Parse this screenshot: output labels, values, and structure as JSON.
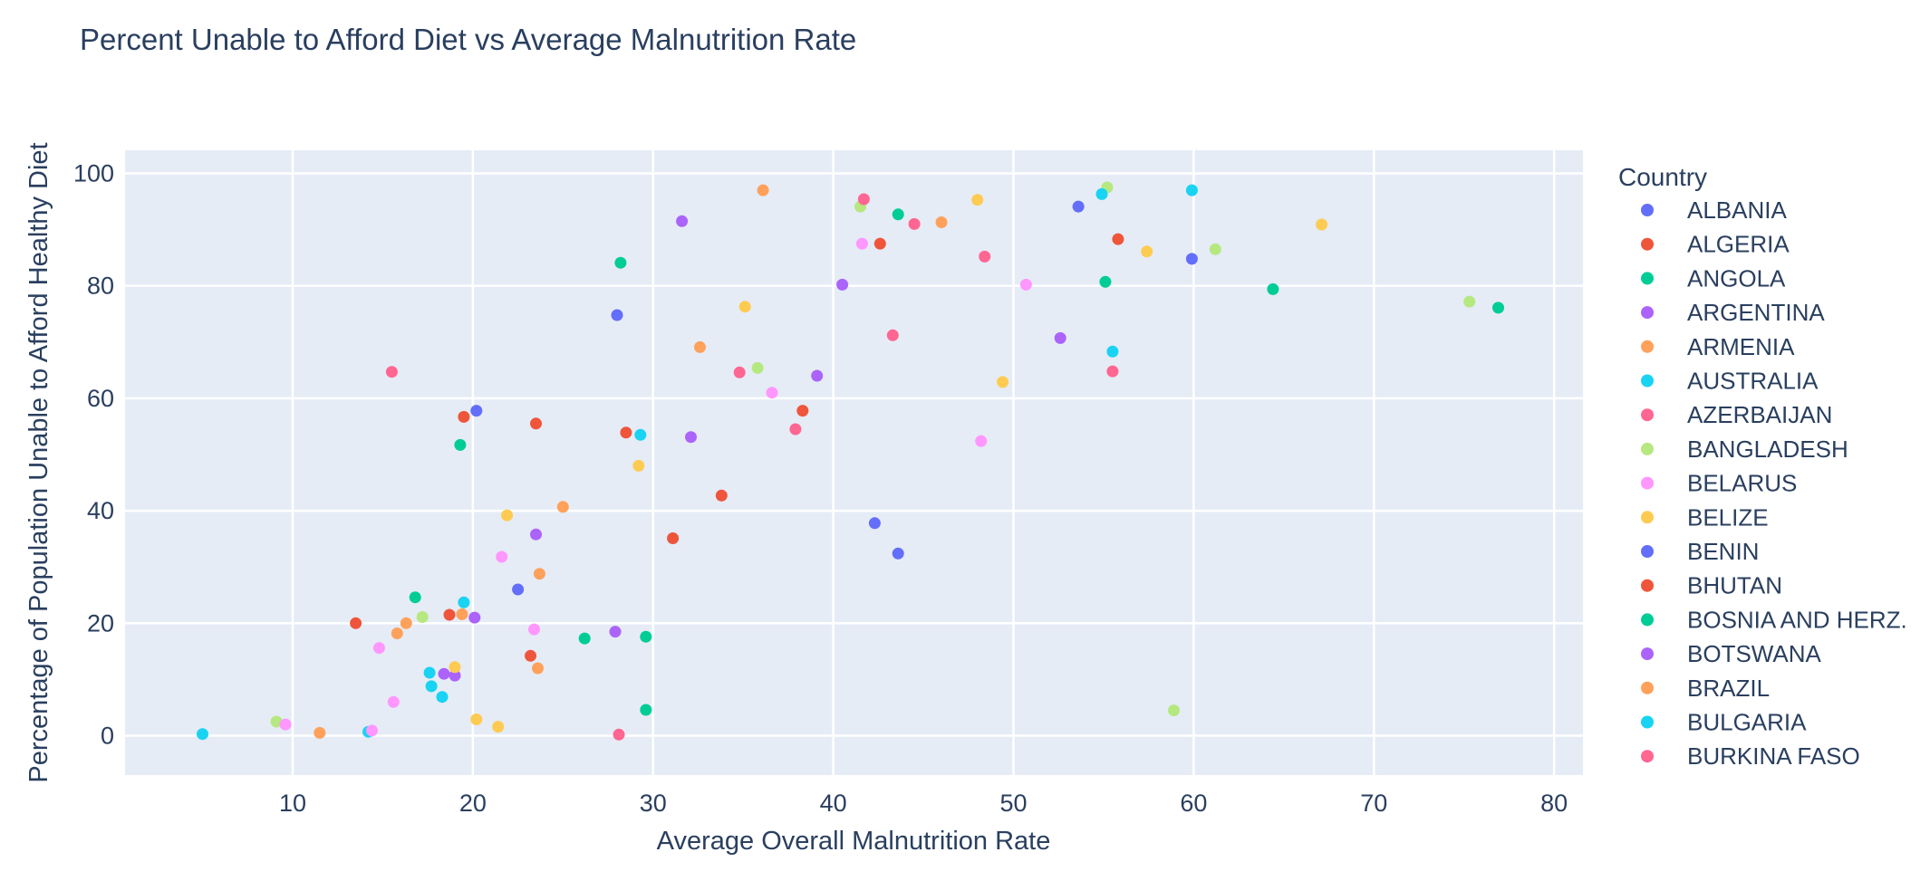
{
  "title": "Percent Unable to Afford Diet vs Average Malnutrition Rate",
  "chart_data": {
    "type": "scatter",
    "title": "Percent Unable to Afford Diet vs Average Malnutrition Rate",
    "xlabel": "Average Overall Malnutrition Rate",
    "ylabel": "Percentage of Population Unable to Afford Healthy Diet",
    "legend_title": "Country",
    "legend_position": "right",
    "grid": true,
    "xlim": [
      0.7,
      81.6
    ],
    "ylim": [
      -7,
      104.1
    ],
    "xticks": [
      10,
      20,
      30,
      40,
      50,
      60,
      70,
      80
    ],
    "yticks": [
      0,
      20,
      40,
      60,
      80,
      100
    ],
    "plot_bg": "#E5ECF6",
    "grid_color": "#FFFFFF",
    "text_color": "#2a3f5f",
    "marker_radius": 6.5,
    "series": [
      {
        "name": "ALBANIA",
        "color": "#636EFA",
        "points": [
          [
            28.0,
            74.8
          ],
          [
            20.2,
            57.8
          ],
          [
            22.5,
            26.0
          ]
        ]
      },
      {
        "name": "ALGERIA",
        "color": "#EF553B",
        "points": [
          [
            19.5,
            56.7
          ],
          [
            23.5,
            55.5
          ],
          [
            28.5,
            53.9
          ],
          [
            18.7,
            21.5
          ],
          [
            13.5,
            20.0
          ],
          [
            23.2,
            14.2
          ]
        ]
      },
      {
        "name": "ANGOLA",
        "color": "#00CC96",
        "points": [
          [
            28.2,
            84.1
          ],
          [
            43.6,
            92.7
          ],
          [
            55.1,
            80.7
          ],
          [
            64.4,
            79.4
          ],
          [
            76.9,
            76.1
          ]
        ]
      },
      {
        "name": "ARGENTINA",
        "color": "#AB63FA",
        "points": [
          [
            32.1,
            53.1
          ],
          [
            23.5,
            35.8
          ],
          [
            20.1,
            21.0
          ],
          [
            27.9,
            18.5
          ],
          [
            18.4,
            11.0
          ],
          [
            19.0,
            10.7
          ]
        ]
      },
      {
        "name": "ARMENIA",
        "color": "#FFA15A",
        "points": [
          [
            36.1,
            97.0
          ],
          [
            46.0,
            91.3
          ],
          [
            32.6,
            69.1
          ],
          [
            25.0,
            40.7
          ],
          [
            23.7,
            28.8
          ],
          [
            23.6,
            12.0
          ]
        ]
      },
      {
        "name": "AUSTRALIA",
        "color": "#19D3F3",
        "points": [
          [
            19.5,
            23.7
          ],
          [
            17.6,
            11.2
          ],
          [
            17.7,
            8.8
          ],
          [
            18.3,
            6.9
          ],
          [
            5.0,
            0.3
          ],
          [
            14.2,
            0.7
          ]
        ]
      },
      {
        "name": "AZERBAIJAN",
        "color": "#FF6692",
        "points": [
          [
            15.5,
            64.7
          ],
          [
            34.8,
            64.6
          ],
          [
            28.1,
            0.2
          ]
        ]
      },
      {
        "name": "BANGLADESH",
        "color": "#B6E880",
        "points": [
          [
            41.5,
            94.1
          ],
          [
            55.2,
            97.5
          ],
          [
            61.2,
            86.5
          ],
          [
            75.3,
            77.2
          ],
          [
            35.8,
            65.4
          ],
          [
            17.2,
            21.1
          ],
          [
            9.1,
            2.5
          ],
          [
            58.9,
            4.5
          ]
        ]
      },
      {
        "name": "BELARUS",
        "color": "#FF97FF",
        "points": [
          [
            41.6,
            87.5
          ],
          [
            50.7,
            80.2
          ],
          [
            36.6,
            61.0
          ],
          [
            48.2,
            52.4
          ],
          [
            21.6,
            31.8
          ],
          [
            23.4,
            18.9
          ],
          [
            14.8,
            15.6
          ],
          [
            15.6,
            6.0
          ],
          [
            9.6,
            2.0
          ],
          [
            14.4,
            0.9
          ]
        ]
      },
      {
        "name": "BELIZE",
        "color": "#FECB52",
        "points": [
          [
            48.0,
            95.3
          ],
          [
            67.1,
            90.9
          ],
          [
            57.4,
            86.1
          ],
          [
            35.1,
            76.3
          ],
          [
            49.4,
            62.9
          ],
          [
            29.2,
            48.0
          ],
          [
            21.9,
            39.2
          ],
          [
            19.0,
            12.2
          ],
          [
            20.2,
            2.9
          ],
          [
            21.4,
            1.6
          ]
        ]
      },
      {
        "name": "BENIN",
        "color": "#636EFA",
        "points": [
          [
            53.6,
            94.1
          ],
          [
            59.9,
            84.8
          ],
          [
            42.3,
            37.8
          ],
          [
            43.6,
            32.4
          ]
        ]
      },
      {
        "name": "BHUTAN",
        "color": "#EF553B",
        "points": [
          [
            42.6,
            87.5
          ],
          [
            55.8,
            88.3
          ],
          [
            38.3,
            57.8
          ],
          [
            33.8,
            42.7
          ],
          [
            31.1,
            35.1
          ]
        ]
      },
      {
        "name": "BOSNIA AND HERZ.",
        "color": "#00CC96",
        "points": [
          [
            19.3,
            51.7
          ],
          [
            16.8,
            24.6
          ],
          [
            26.2,
            17.3
          ],
          [
            29.6,
            17.6
          ],
          [
            29.6,
            4.6
          ]
        ]
      },
      {
        "name": "BOTSWANA",
        "color": "#AB63FA",
        "points": [
          [
            31.6,
            91.5
          ],
          [
            40.5,
            80.2
          ],
          [
            52.6,
            70.7
          ],
          [
            39.1,
            64.0
          ]
        ]
      },
      {
        "name": "BRAZIL",
        "color": "#FFA15A",
        "points": [
          [
            19.4,
            21.6
          ],
          [
            16.3,
            20.0
          ],
          [
            15.8,
            18.2
          ],
          [
            11.5,
            0.5
          ]
        ]
      },
      {
        "name": "BULGARIA",
        "color": "#19D3F3",
        "points": [
          [
            59.9,
            97.0
          ],
          [
            54.9,
            96.3
          ],
          [
            55.5,
            68.3
          ],
          [
            29.3,
            53.5
          ]
        ]
      },
      {
        "name": "BURKINA FASO",
        "color": "#FF6692",
        "points": [
          [
            41.7,
            95.4
          ],
          [
            44.5,
            91.0
          ],
          [
            48.4,
            85.2
          ],
          [
            43.3,
            71.2
          ],
          [
            55.5,
            64.8
          ],
          [
            37.9,
            54.5
          ]
        ]
      }
    ]
  }
}
